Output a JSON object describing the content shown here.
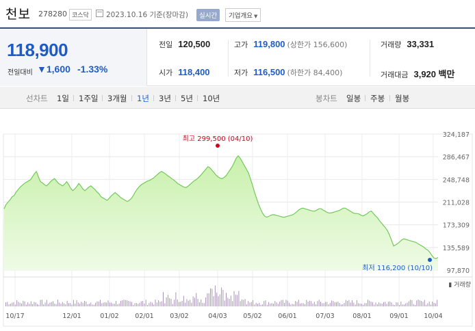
{
  "header": {
    "name": "천보",
    "code": "278280",
    "market": "코스닥",
    "date": "2023.10.16 기준(장마감)",
    "realtime_label": "실시간",
    "overview_label": "기업개요"
  },
  "quote": {
    "price": "118,900",
    "change_label": "전일대비",
    "change_amount": "1,600",
    "change_pct": "-1.33%",
    "direction": "down",
    "stats": {
      "prev_close_label": "전일",
      "prev_close": "120,500",
      "high_label": "고가",
      "high": "119,800",
      "upper_limit": "(상한가 156,600)",
      "volume_label": "거래량",
      "volume": "33,331",
      "open_label": "시가",
      "open": "118,400",
      "low_label": "저가",
      "low": "116,500",
      "lower_limit": "(하한가 84,400)",
      "trade_value_label": "거래대금",
      "trade_value": "3,920",
      "trade_value_unit": "백만"
    }
  },
  "tabs": {
    "line_label": "선차트",
    "line_ranges": [
      "1일",
      "1주일",
      "3개월",
      "1년",
      "3년",
      "5년",
      "10년"
    ],
    "active": "1년",
    "candle_label": "봉차트",
    "candle_ranges": [
      "일봉",
      "주봉",
      "월봉"
    ]
  },
  "colors": {
    "down": "#1f5bc6",
    "up": "#d0021b",
    "area_fill": "#d6f5c1",
    "area_line": "#73c95a",
    "volume": "#8a6f9e"
  },
  "chart_data": {
    "type": "area",
    "y_ticks": [
      "324,187",
      "286,467",
      "248,748",
      "211,028",
      "173,309",
      "135,589",
      "97,870"
    ],
    "ylim": [
      97870,
      324187
    ],
    "x_ticks": [
      "10/17",
      "12/01",
      "01/02",
      "02/01",
      "03/02",
      "04/03",
      "05/02",
      "06/01",
      "07/03",
      "08/01",
      "09/01",
      "10/04"
    ],
    "high_annotation": "최고 299,500 (04/10)",
    "low_annotation": "최저 116,200 (10/10)",
    "volume_label": "거래량",
    "series": [
      {
        "values": [
          200000,
          207000,
          211000,
          215000,
          220000,
          222000,
          228000,
          232000,
          236000,
          239000,
          242000,
          244000,
          246000,
          248000,
          253000,
          258000,
          262000,
          253000,
          245000,
          243000,
          240000,
          238000,
          241000,
          245000,
          248000,
          250000,
          246000,
          242000,
          240000,
          238000,
          241000,
          245000,
          240000,
          234000,
          230000,
          233000,
          237000,
          242000,
          238000,
          233000,
          230000,
          233000,
          236000,
          238000,
          235000,
          232000,
          228000,
          225000,
          220000,
          218000,
          216000,
          214000,
          217000,
          221000,
          224000,
          227000,
          224000,
          221000,
          218000,
          216000,
          214000,
          212000,
          214000,
          217000,
          222000,
          228000,
          233000,
          237000,
          240000,
          242000,
          244000,
          246000,
          247000,
          249000,
          251000,
          254000,
          257000,
          260000,
          262000,
          260000,
          258000,
          255000,
          253000,
          250000,
          248000,
          245000,
          242000,
          240000,
          238000,
          236000,
          235000,
          237000,
          240000,
          243000,
          246000,
          248000,
          251000,
          254000,
          258000,
          262000,
          266000,
          270000,
          268000,
          264000,
          260000,
          256000,
          253000,
          251000,
          250000,
          252000,
          255000,
          260000,
          265000,
          270000,
          277000,
          284000,
          288000,
          284000,
          278000,
          272000,
          266000,
          260000,
          250000,
          240000,
          228000,
          218000,
          208000,
          200000,
          193000,
          188000,
          186000,
          187000,
          189000,
          190000,
          190000,
          189000,
          188000,
          187000,
          186000,
          186000,
          187000,
          188000,
          189000,
          190000,
          192000,
          195000,
          198000,
          200000,
          201000,
          200000,
          199000,
          198000,
          197000,
          196000,
          196000,
          198000,
          200000,
          200000,
          198000,
          196000,
          194000,
          193000,
          193000,
          194000,
          195000,
          196000,
          197000,
          199000,
          201000,
          201000,
          199000,
          197000,
          195000,
          193000,
          192000,
          192000,
          191000,
          189000,
          188000,
          190000,
          192000,
          195000,
          196000,
          192000,
          188000,
          185000,
          180000,
          176000,
          172000,
          168000,
          163000,
          156000,
          147000,
          138000,
          140000,
          142000,
          145000,
          148000,
          150000,
          149000,
          148000,
          147000,
          146000,
          145000,
          144000,
          142000,
          140000,
          138000,
          136000,
          133000,
          131000,
          127000,
          122000,
          118000,
          117000,
          118900
        ]
      }
    ],
    "high_point": {
      "label": "04/10",
      "value": 299500
    },
    "low_point": {
      "label": "10/10",
      "value": 116200
    }
  }
}
